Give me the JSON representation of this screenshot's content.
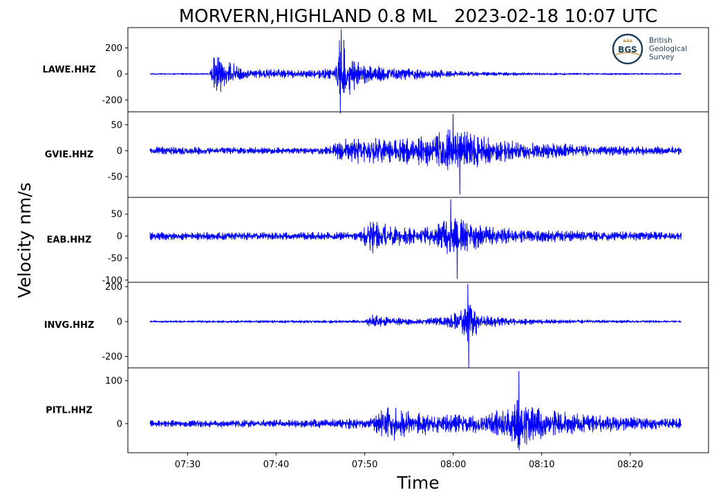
{
  "chart_data": {
    "type": "line",
    "title": "MORVERN,HIGHLAND 0.8 ML   2023-02-18 10:07 UTC",
    "ylabel": "Velocity nm/s",
    "xlabel": "Time",
    "x_ticks": [
      "07:30",
      "07:40",
      "07:50",
      "08:00",
      "08:10",
      "08:20"
    ],
    "x_range": [
      "07:23:15",
      "08:28:50"
    ],
    "data_range": [
      "07:25:45",
      "08:25:45"
    ],
    "line_color": "#0000ff",
    "grid": false,
    "logo": {
      "lines": [
        "British",
        "Geological",
        "Survey"
      ],
      "badge": "BGS",
      "placement": "top-right"
    },
    "series": [
      {
        "name": "LAWE.HHZ",
        "ylim": [
          -290,
          355
        ],
        "yticks": [
          200,
          0,
          -200
        ],
        "envelope": [
          [
            7,
            5
          ],
          [
            10,
            5
          ],
          [
            14,
            5
          ],
          [
            15,
            150
          ],
          [
            20,
            30
          ],
          [
            26,
            36
          ],
          [
            30,
            24
          ],
          [
            34,
            35
          ],
          [
            35.7,
            45
          ],
          [
            36.2,
            160
          ],
          [
            36.7,
            340
          ],
          [
            37.5,
            180
          ],
          [
            38.5,
            130
          ],
          [
            40,
            75
          ],
          [
            43,
            55
          ],
          [
            48,
            40
          ],
          [
            55,
            24
          ],
          [
            62,
            14
          ],
          [
            70,
            9
          ],
          [
            80,
            6
          ],
          [
            95,
            5
          ]
        ],
        "min": -300,
        "max": 340
      },
      {
        "name": "GVIE.HHZ",
        "ylim": [
          -90,
          75
        ],
        "yticks": [
          50,
          0,
          -50
        ],
        "envelope": [
          [
            7,
            7
          ],
          [
            20,
            6
          ],
          [
            30,
            5
          ],
          [
            35,
            8
          ],
          [
            37,
            20
          ],
          [
            42,
            24
          ],
          [
            47,
            22
          ],
          [
            52,
            30
          ],
          [
            54,
            38
          ],
          [
            58,
            38
          ],
          [
            61,
            27
          ],
          [
            66,
            18
          ],
          [
            72,
            14
          ],
          [
            80,
            9
          ],
          [
            95,
            7
          ]
        ],
        "min": -84,
        "max": 70
      },
      {
        "name": "EAB.HHZ",
        "ylim": [
          -105,
          88
        ],
        "yticks": [
          50,
          0,
          -50,
          -100
        ],
        "envelope": [
          [
            7,
            8
          ],
          [
            35,
            8
          ],
          [
            40,
            9
          ],
          [
            42,
            38
          ],
          [
            45,
            23
          ],
          [
            49,
            16
          ],
          [
            53,
            22
          ],
          [
            56,
            45
          ],
          [
            58,
            36
          ],
          [
            63,
            18
          ],
          [
            70,
            13
          ],
          [
            80,
            10
          ],
          [
            95,
            8
          ]
        ],
        "min": -97,
        "max": 83
      },
      {
        "name": "INVG.HHZ",
        "ylim": [
          -265,
          225
        ],
        "yticks": [
          200,
          0,
          -200
        ],
        "envelope": [
          [
            7,
            5
          ],
          [
            28,
            7
          ],
          [
            41,
            8
          ],
          [
            42,
            42
          ],
          [
            45,
            22
          ],
          [
            50,
            16
          ],
          [
            55,
            28
          ],
          [
            57,
            52
          ],
          [
            58,
            110
          ],
          [
            58.6,
            150
          ],
          [
            59.5,
            85
          ],
          [
            61,
            35
          ],
          [
            66,
            18
          ],
          [
            75,
            10
          ],
          [
            95,
            5
          ]
        ],
        "min": -265,
        "max": 215
      },
      {
        "name": "PITL.HHZ",
        "ylim": [
          -68,
          130
        ],
        "yticks": [
          100,
          0
        ],
        "envelope": [
          [
            7,
            7
          ],
          [
            25,
            8
          ],
          [
            33,
            9
          ],
          [
            42,
            12
          ],
          [
            45,
            40
          ],
          [
            48,
            26
          ],
          [
            55,
            20
          ],
          [
            62,
            20
          ],
          [
            66.5,
            45
          ],
          [
            67.3,
            60
          ],
          [
            70,
            35
          ],
          [
            75,
            24
          ],
          [
            85,
            15
          ],
          [
            95,
            11
          ]
        ],
        "min": -62,
        "max": 122
      }
    ]
  }
}
